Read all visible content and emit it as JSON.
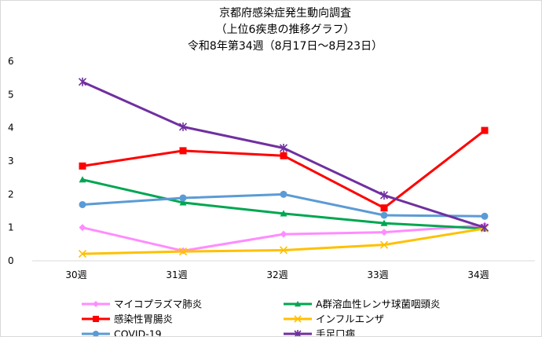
{
  "chart_data": {
    "type": "line",
    "title_lines": [
      "京都府感染症発生動向調査",
      "（上位6疾患の推移グラフ）",
      "令和8年第34週（8月17日～8月23日）"
    ],
    "categories": [
      "30週",
      "31週",
      "32週",
      "33週",
      "34週"
    ],
    "ylim": [
      0,
      6
    ],
    "yticks": [
      "0",
      "1",
      "2",
      "3",
      "4",
      "5",
      "6"
    ],
    "grid": false,
    "legend_position": "bottom",
    "series": [
      {
        "name": "マイコプラズマ肺炎",
        "color": "#ff8cff",
        "marker": "diamond",
        "values": [
          1.0,
          0.3,
          0.8,
          0.86,
          1.07
        ]
      },
      {
        "name": "A群溶血性レンサ球菌咽頭炎",
        "color": "#00a651",
        "marker": "triangle",
        "values": [
          2.44,
          1.75,
          1.42,
          1.13,
          0.97
        ]
      },
      {
        "name": "感染性胃腸炎",
        "color": "#ff0000",
        "marker": "square",
        "values": [
          2.85,
          3.31,
          3.16,
          1.59,
          3.92
        ]
      },
      {
        "name": "インフルエンザ",
        "color": "#ffc000",
        "marker": "x",
        "values": [
          0.21,
          0.28,
          0.32,
          0.48,
          0.97
        ]
      },
      {
        "name": "COVID-19",
        "color": "#5b9bd5",
        "marker": "circle",
        "values": [
          1.69,
          1.89,
          2.0,
          1.37,
          1.34
        ]
      },
      {
        "name": "手足口病",
        "color": "#7030a0",
        "marker": "star",
        "values": [
          5.38,
          4.03,
          3.39,
          1.97,
          1.0
        ]
      }
    ]
  }
}
